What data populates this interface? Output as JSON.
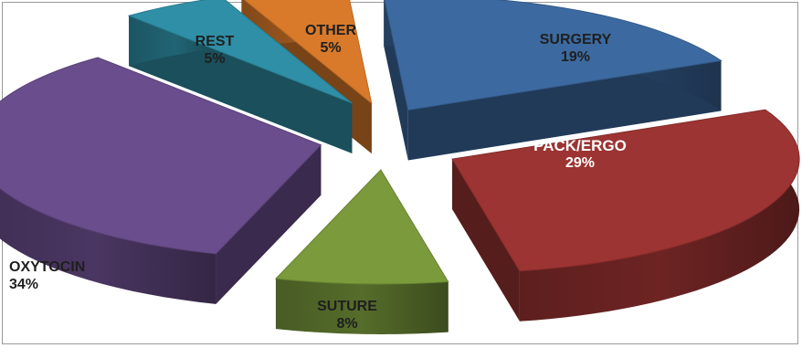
{
  "chart_data": {
    "type": "pie",
    "style": "3d-exploded",
    "title": "",
    "slices": [
      {
        "label": "SURGERY",
        "value": 19,
        "pct_label": "19%",
        "color": "#3c6aa0"
      },
      {
        "label": "PACK/ERGO",
        "value": 29,
        "pct_label": "29%",
        "color": "#9b3432"
      },
      {
        "label": "SUTURE",
        "value": 8,
        "pct_label": "8%",
        "color": "#7a9a3c"
      },
      {
        "label": "OXYTOCIN",
        "value": 34,
        "pct_label": "34%",
        "color": "#6a4d8c"
      },
      {
        "label": "REST",
        "value": 5,
        "pct_label": "5%",
        "color": "#2f8fa6"
      },
      {
        "label": "OTHER",
        "value": 5,
        "pct_label": "5%",
        "color": "#d97a2a"
      }
    ],
    "legend": "none"
  }
}
